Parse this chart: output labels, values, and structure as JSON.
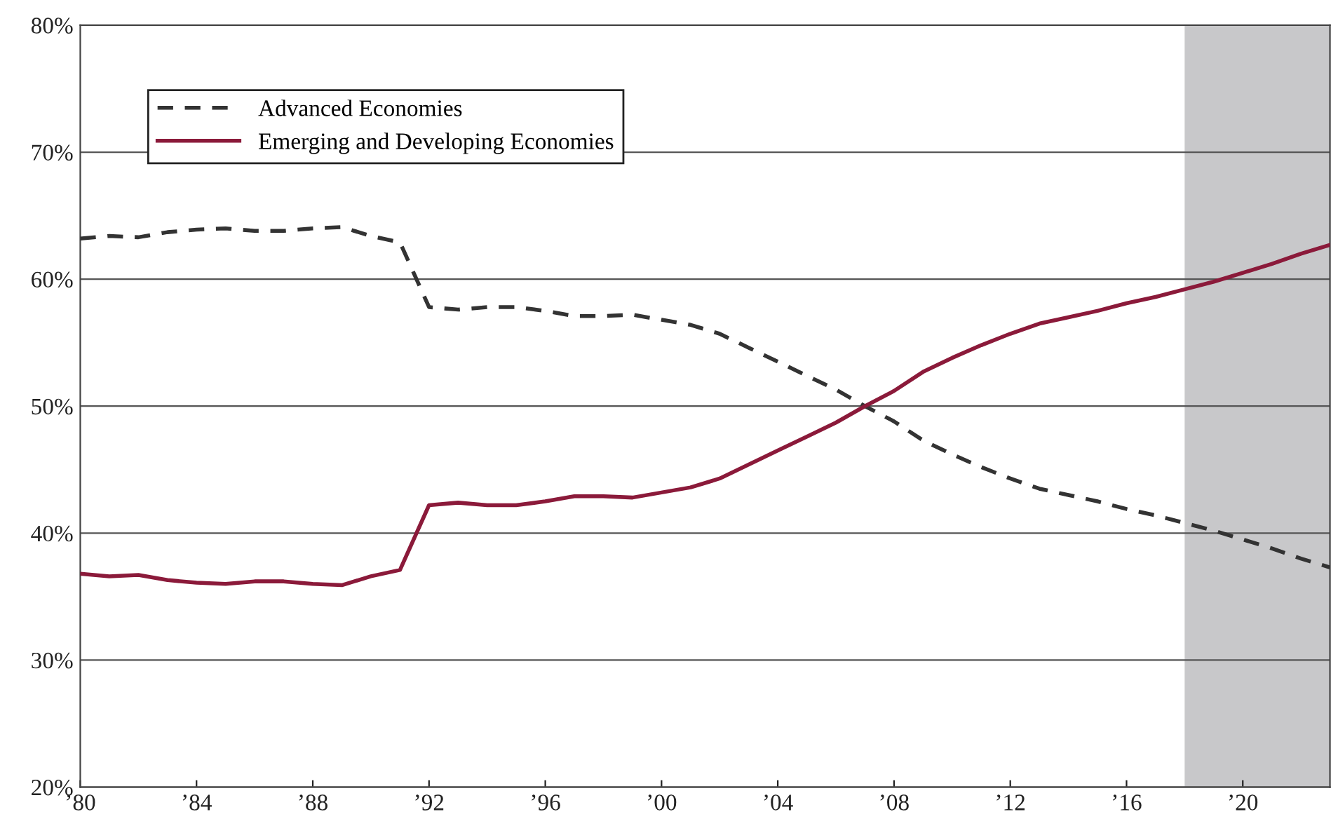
{
  "chart_data": {
    "type": "line",
    "x": [
      1980,
      1981,
      1982,
      1983,
      1984,
      1985,
      1986,
      1987,
      1988,
      1989,
      1990,
      1991,
      1992,
      1993,
      1994,
      1995,
      1996,
      1997,
      1998,
      1999,
      2000,
      2001,
      2002,
      2003,
      2004,
      2005,
      2006,
      2007,
      2008,
      2009,
      2010,
      2011,
      2012,
      2013,
      2014,
      2015,
      2016,
      2017,
      2018,
      2019,
      2020,
      2021,
      2022,
      2023
    ],
    "series": [
      {
        "name": "Advanced Economies",
        "color": "#333333",
        "line_style": "dashed",
        "values": [
          63.2,
          63.4,
          63.3,
          63.7,
          63.9,
          64.0,
          63.8,
          63.8,
          64.0,
          64.1,
          63.4,
          62.9,
          57.8,
          57.6,
          57.8,
          57.8,
          57.5,
          57.1,
          57.1,
          57.2,
          56.8,
          56.4,
          55.7,
          54.6,
          53.5,
          52.4,
          51.3,
          50.0,
          48.8,
          47.3,
          46.2,
          45.2,
          44.3,
          43.5,
          43.0,
          42.5,
          41.9,
          41.4,
          40.8,
          40.2,
          39.5,
          38.8,
          38.0,
          37.3
        ]
      },
      {
        "name": "Emerging and Developing Economies",
        "color": "#8b1a3a",
        "line_style": "solid",
        "values": [
          36.8,
          36.6,
          36.7,
          36.3,
          36.1,
          36.0,
          36.2,
          36.2,
          36.0,
          35.9,
          36.6,
          37.1,
          42.2,
          42.4,
          42.2,
          42.2,
          42.5,
          42.9,
          42.9,
          42.8,
          43.2,
          43.6,
          44.3,
          45.4,
          46.5,
          47.6,
          48.7,
          50.0,
          51.2,
          52.7,
          53.8,
          54.8,
          55.7,
          56.5,
          57.0,
          57.5,
          58.1,
          58.6,
          59.2,
          59.8,
          60.5,
          61.2,
          62.0,
          62.7
        ]
      }
    ],
    "xlim": [
      1980,
      2023
    ],
    "xticks": [
      {
        "value": 1980,
        "label": "’80"
      },
      {
        "value": 1984,
        "label": "’84"
      },
      {
        "value": 1988,
        "label": "’88"
      },
      {
        "value": 1992,
        "label": "’92"
      },
      {
        "value": 1996,
        "label": "’96"
      },
      {
        "value": 2000,
        "label": "’00"
      },
      {
        "value": 2004,
        "label": "’04"
      },
      {
        "value": 2008,
        "label": "’08"
      },
      {
        "value": 2012,
        "label": "’12"
      },
      {
        "value": 2016,
        "label": "’16"
      },
      {
        "value": 2020,
        "label": "’20"
      }
    ],
    "ylim": [
      20,
      80
    ],
    "yticks": [
      {
        "value": 20,
        "label": "20%"
      },
      {
        "value": 30,
        "label": "30%"
      },
      {
        "value": 40,
        "label": "40%"
      },
      {
        "value": 50,
        "label": "50%"
      },
      {
        "value": 60,
        "label": "60%"
      },
      {
        "value": 70,
        "label": "70%"
      },
      {
        "value": 80,
        "label": "80%"
      }
    ],
    "bands": [
      {
        "axis": "x",
        "from": 2018,
        "to": 2023,
        "color": "#c8c8ca"
      }
    ],
    "grid": "y",
    "legend": "top left"
  }
}
